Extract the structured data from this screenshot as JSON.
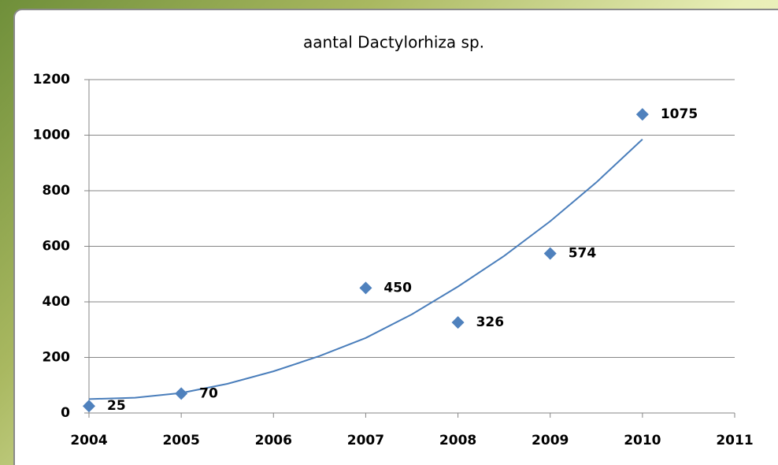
{
  "chart_data": {
    "type": "scatter",
    "title": "aantal Dactylorhiza sp.",
    "series": [
      {
        "color": "#4f81bd",
        "x": [
          2004,
          2005,
          2007,
          2008,
          2009,
          2010
        ],
        "values": [
          25,
          70,
          450,
          326,
          574,
          1075
        ]
      }
    ],
    "trendline": {
      "color": "#4a7ebb",
      "x": [
        2004,
        2004.5,
        2005,
        2005.5,
        2006,
        2006.5,
        2007,
        2007.5,
        2008,
        2008.5,
        2009,
        2009.5,
        2010
      ],
      "values": [
        50,
        55,
        72,
        105,
        150,
        205,
        270,
        355,
        455,
        565,
        690,
        830,
        985
      ]
    },
    "xlim": [
      2004,
      2011
    ],
    "xticks": [
      2004,
      2005,
      2006,
      2007,
      2008,
      2009,
      2010,
      2011
    ],
    "ylim": [
      0,
      1200
    ],
    "yticks": [
      0,
      200,
      400,
      600,
      800,
      1000,
      1200
    ],
    "grid": true
  }
}
